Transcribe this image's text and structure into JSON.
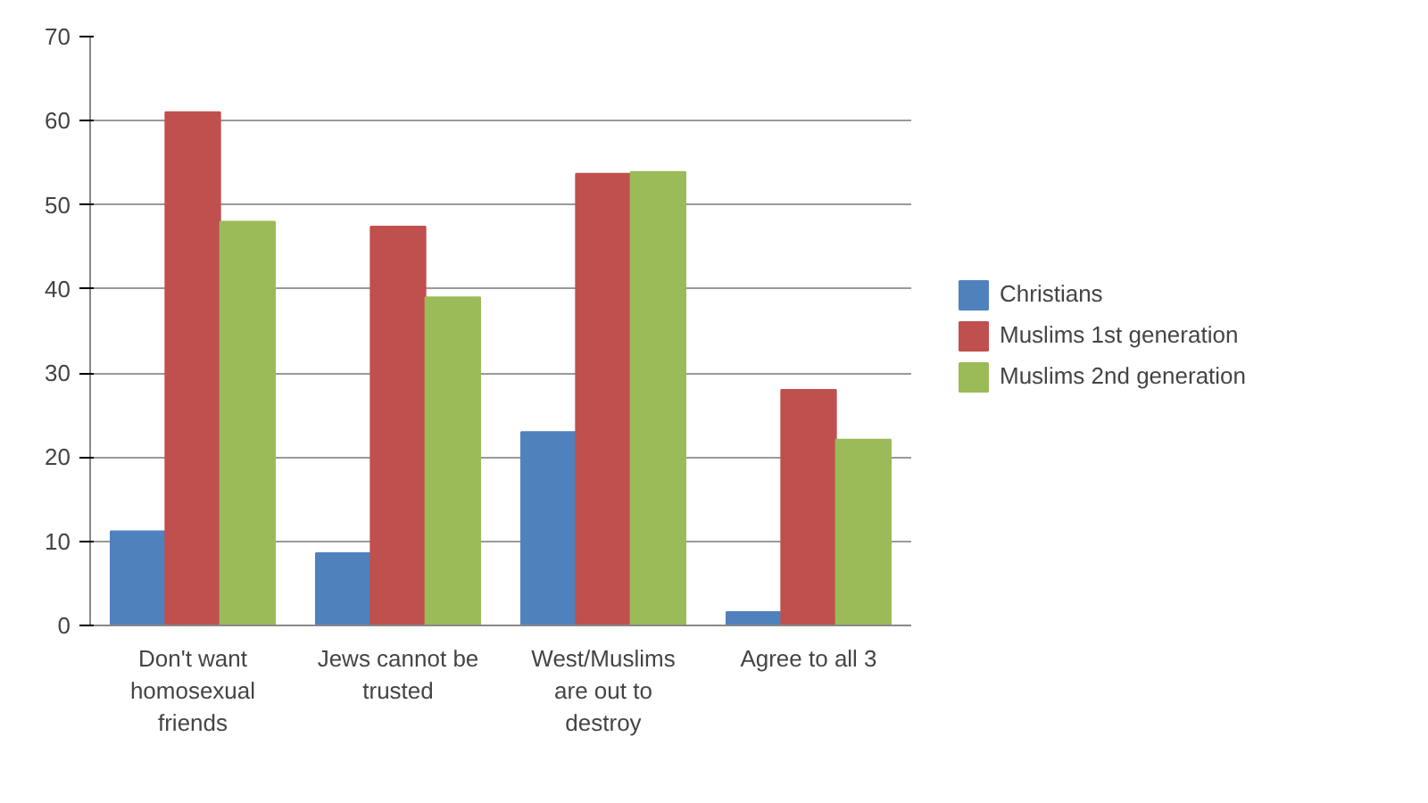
{
  "chart_data": {
    "type": "bar",
    "categories": [
      "Don't want homosexual friends",
      "Jews cannot be trusted",
      "West/Muslims are out to destroy",
      "Agree to all 3"
    ],
    "series": [
      {
        "name": "Christians",
        "color": "#4f81bd",
        "values": [
          11.2,
          8.6,
          23,
          1.6
        ]
      },
      {
        "name": "Muslims 1st generation",
        "color": "#c0504d",
        "values": [
          61,
          47.4,
          53.7,
          28
        ]
      },
      {
        "name": "Muslims 2nd generation",
        "color": "#9bbb59",
        "values": [
          48,
          39,
          53.9,
          22.1
        ]
      }
    ],
    "ylim": [
      0,
      70
    ],
    "yticks": [
      0,
      10,
      20,
      30,
      40,
      50,
      60,
      70
    ],
    "grid": "y",
    "legend": "right"
  }
}
